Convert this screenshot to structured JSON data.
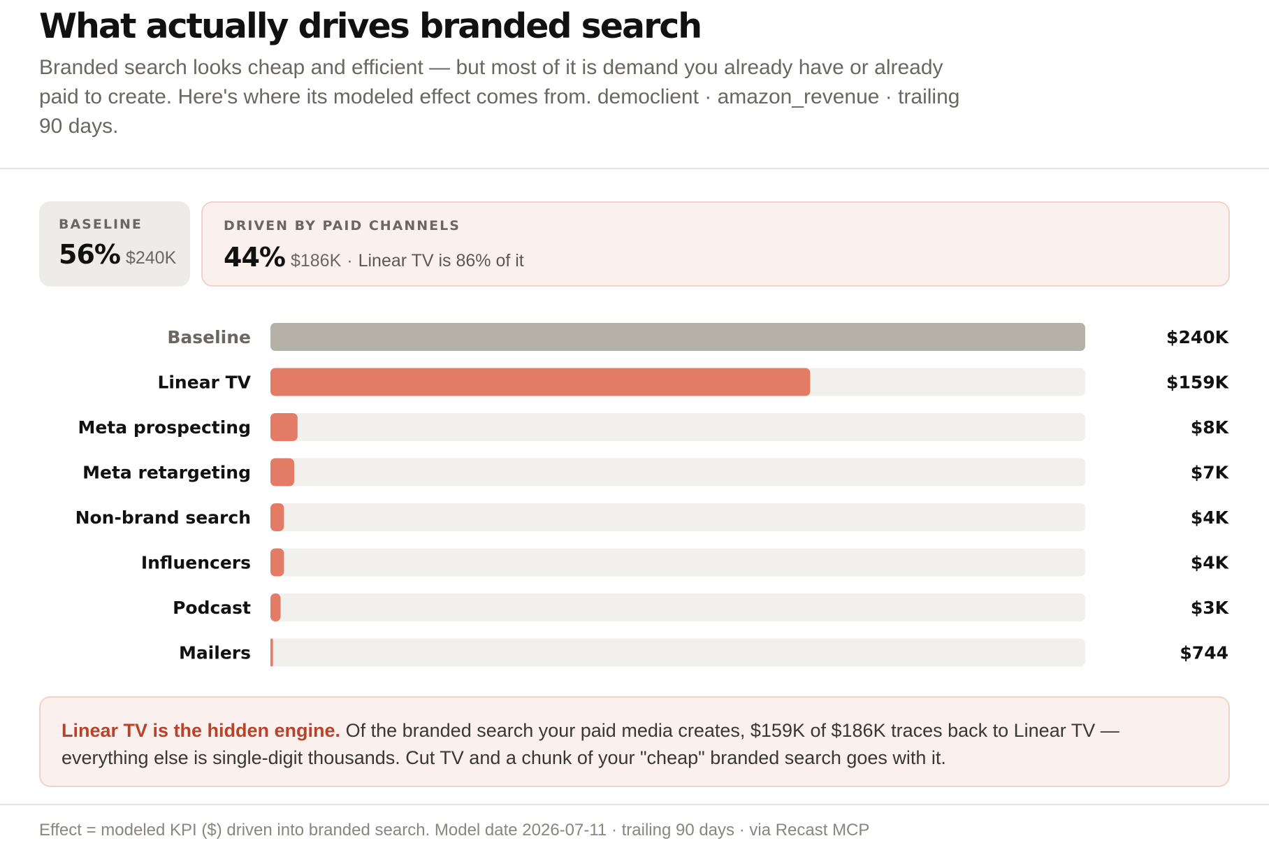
{
  "title": "What actually drives branded search",
  "subtitle": "Branded search looks cheap and efficient — but most of it is demand you already have or already paid to create. Here's where its modeled effect comes from. democlient · amazon_revenue · trailing 90 days.",
  "cards": {
    "baseline": {
      "label": "BASELINE",
      "pct": "56%",
      "amount": "$240K"
    },
    "paid": {
      "label": "DRIVEN BY PAID CHANNELS",
      "pct": "44%",
      "amount": "$186K",
      "separator": "·",
      "note": "Linear TV is 86% of it"
    }
  },
  "colors": {
    "baseline_bar": "#b6b1a7",
    "channel_bar": "#e27c66",
    "track": "#f2f0ec",
    "baseline_label": "#6b6661",
    "accent": "#b8432a"
  },
  "chart_data": {
    "type": "bar",
    "orientation": "horizontal",
    "categories": [
      "Baseline",
      "Linear TV",
      "Meta prospecting",
      "Meta retargeting",
      "Non-brand search",
      "Influencers",
      "Podcast",
      "Mailers"
    ],
    "values": [
      240000,
      159000,
      8000,
      7000,
      4000,
      4000,
      3000,
      744
    ],
    "value_labels": [
      "$240K",
      "$159K",
      "$8K",
      "$7K",
      "$4K",
      "$4K",
      "$3K",
      "$744"
    ],
    "xlim": [
      0,
      240000
    ],
    "grid": false,
    "legend": "none"
  },
  "callout": {
    "strong": "Linear TV is the hidden engine.",
    "text": "Of the branded search your paid media creates, $159K of $186K traces back to Linear TV — everything else is single-digit thousands. Cut TV and a chunk of your \"cheap\" branded search goes with it."
  },
  "footer": "Effect = modeled KPI ($) driven into branded search. Model date 2026-07-11 · trailing 90 days · via Recast MCP"
}
